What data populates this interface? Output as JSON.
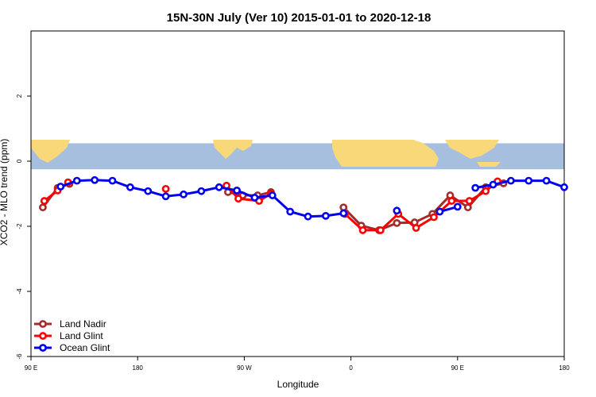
{
  "chart_data": {
    "type": "line",
    "title": "15N-30N July (Ver 10)   2015-01-01 to 2020-12-18",
    "xlabel": "Longitude",
    "ylabel": "XCO2 - MLO trend (ppm)",
    "xlim": [
      90,
      450
    ],
    "ylim": [
      -6,
      4
    ],
    "x_ticks": [
      {
        "value": 90,
        "label": "90 E"
      },
      {
        "value": 162,
        "label": "180"
      },
      {
        "value": 234,
        "label": "90 W"
      },
      {
        "value": 306,
        "label": "0"
      },
      {
        "value": 378,
        "label": "90 E"
      },
      {
        "value": 450,
        "label": "180"
      }
    ],
    "y_ticks": [
      {
        "value": -6,
        "label": "-6"
      },
      {
        "value": -4,
        "label": "-4"
      },
      {
        "value": -2,
        "label": "-2"
      },
      {
        "value": 0,
        "label": "0"
      },
      {
        "value": 2,
        "label": "2"
      }
    ],
    "map_strip": {
      "ymin": -0.25,
      "ymax": 0.55,
      "ocean_color": "#a7bfdf",
      "land_color": "#f9d879"
    },
    "grid": false,
    "legend_position": "bottom-left",
    "series": [
      {
        "name": "Land Nadir",
        "color": "#a52a2a",
        "segments": [
          [
            [
              98,
              -1.42
            ],
            [
              108,
              -0.82
            ],
            [
              116,
              -0.7
            ]
          ],
          [
            [
              223,
              -0.95
            ],
            [
              233,
              -1.05
            ],
            [
              243,
              -1.05
            ],
            [
              252,
              -0.95
            ]
          ],
          [
            [
              301,
              -1.42
            ],
            [
              313,
              -1.98
            ],
            [
              325,
              -2.12
            ],
            [
              337,
              -1.9
            ],
            [
              349,
              -1.88
            ],
            [
              361,
              -1.62
            ],
            [
              373,
              -1.05
            ],
            [
              385,
              -1.42
            ],
            [
              397,
              -0.8
            ],
            [
              409,
              -0.68
            ]
          ]
        ]
      },
      {
        "name": "Land Glint",
        "color": "#ff0000",
        "segments": [
          [
            [
              99,
              -1.22
            ],
            [
              108,
              -0.9
            ],
            [
              115,
              -0.65
            ]
          ],
          [
            [
              181,
              -0.85
            ]
          ],
          [
            [
              222,
              -0.75
            ],
            [
              230,
              -1.15
            ],
            [
              244,
              -1.22
            ],
            [
              252,
              -1.0
            ]
          ],
          [
            [
              302,
              -1.62
            ],
            [
              314,
              -2.12
            ],
            [
              326,
              -2.12
            ],
            [
              338,
              -1.62
            ],
            [
              350,
              -2.05
            ],
            [
              362,
              -1.72
            ],
            [
              374,
              -1.22
            ],
            [
              386,
              -1.22
            ],
            [
              397,
              -0.92
            ],
            [
              405,
              -0.62
            ]
          ]
        ]
      },
      {
        "name": "Ocean Glint",
        "color": "#0000ee",
        "segments": [
          [
            [
              110,
              -0.78
            ],
            [
              121,
              -0.6
            ],
            [
              133,
              -0.58
            ],
            [
              145,
              -0.6
            ],
            [
              157,
              -0.8
            ],
            [
              169,
              -0.92
            ],
            [
              181,
              -1.08
            ],
            [
              193,
              -1.02
            ],
            [
              205,
              -0.92
            ],
            [
              217,
              -0.8
            ],
            [
              229,
              -0.9
            ],
            [
              241,
              -1.12
            ],
            [
              253,
              -1.05
            ],
            [
              265,
              -1.55
            ],
            [
              277,
              -1.7
            ],
            [
              289,
              -1.68
            ],
            [
              301,
              -1.6
            ]
          ],
          [
            [
              337,
              -1.52
            ]
          ],
          [
            [
              366,
              -1.55
            ],
            [
              378,
              -1.4
            ]
          ],
          [
            [
              390,
              -0.82
            ],
            [
              402,
              -0.72
            ],
            [
              414,
              -0.6
            ],
            [
              426,
              -0.6
            ],
            [
              438,
              -0.6
            ],
            [
              450,
              -0.8
            ]
          ]
        ]
      }
    ]
  }
}
